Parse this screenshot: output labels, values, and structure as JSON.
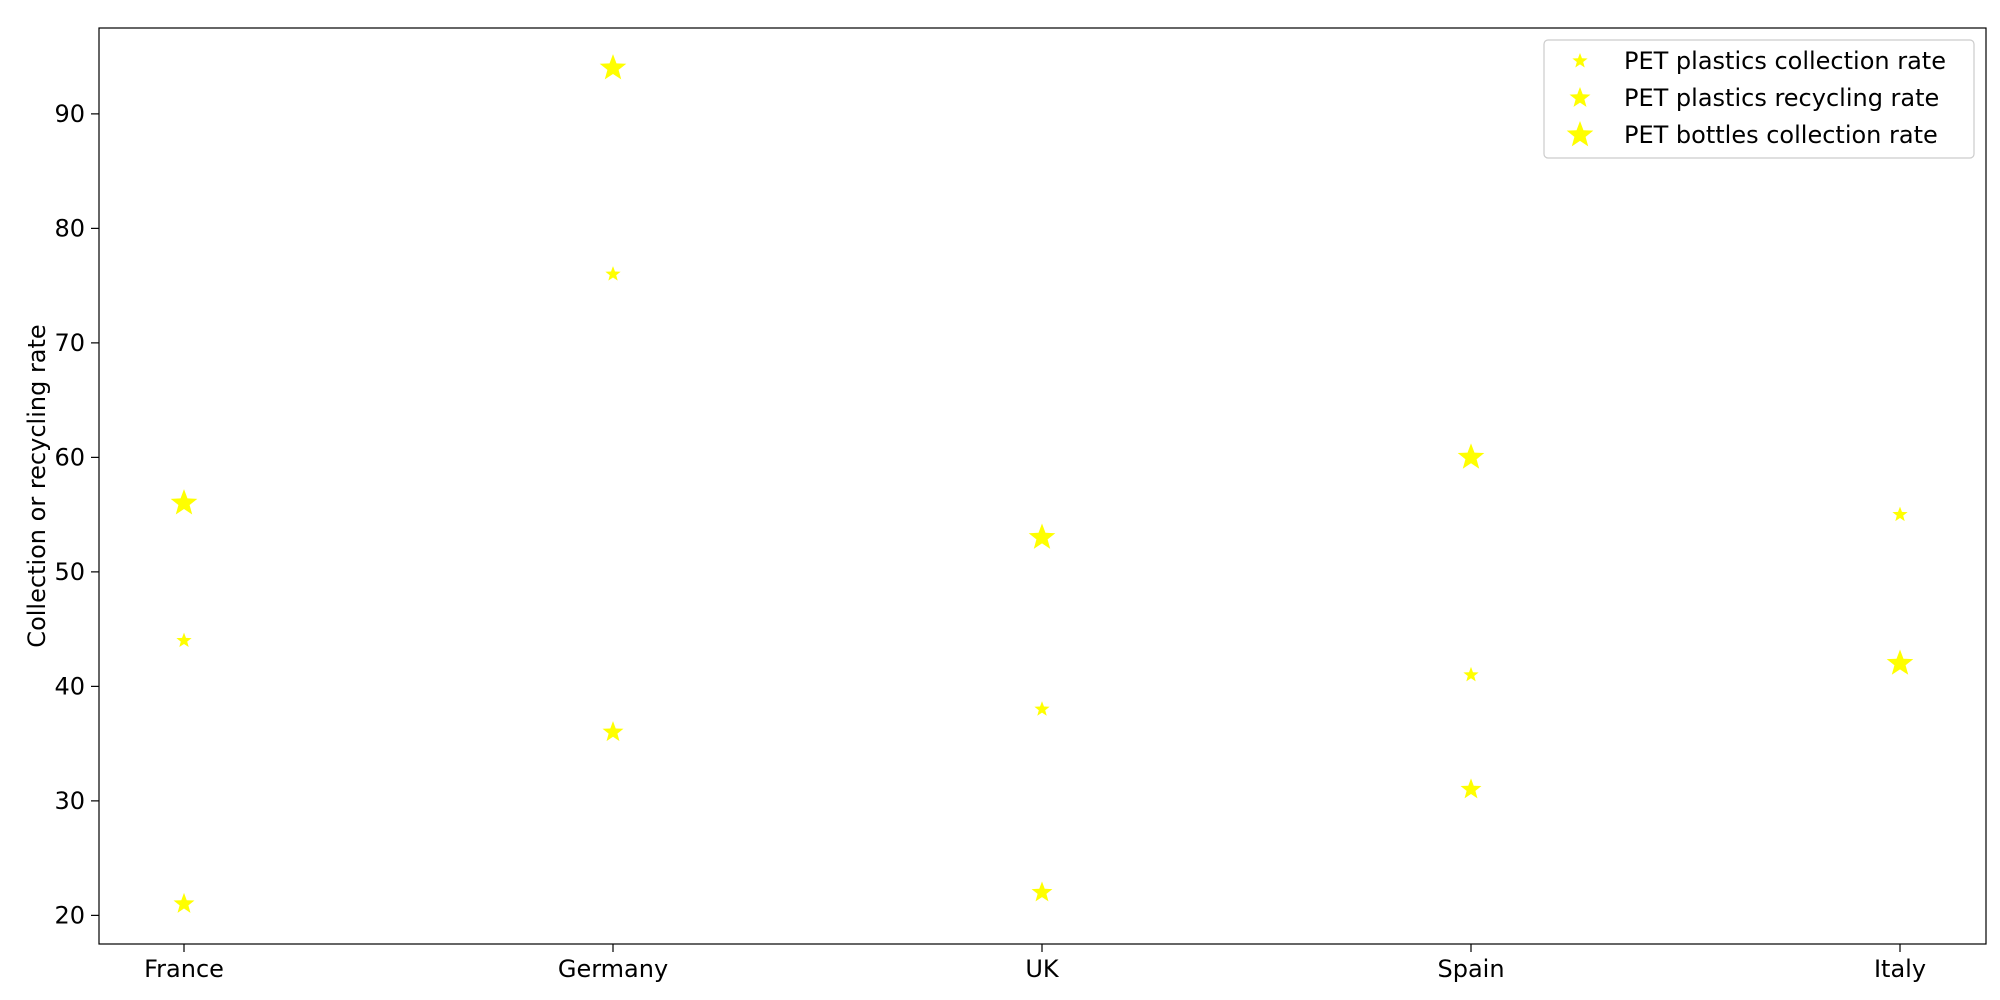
{
  "chart_data": {
    "type": "scatter",
    "title": "",
    "xlabel": "",
    "ylabel": "Collection or recycling rate",
    "categories": [
      "France",
      "Germany",
      "UK",
      "Spain",
      "Italy"
    ],
    "ylim": [
      17.5,
      97.5
    ],
    "yticks": [
      20,
      30,
      40,
      50,
      60,
      70,
      80,
      90
    ],
    "grid": false,
    "legend_position": "top-right",
    "marker": "star",
    "series": [
      {
        "name": "PET plastics collection rate",
        "color": "#ffff00",
        "marker_size": "small",
        "values": [
          44,
          76,
          38,
          41,
          55
        ]
      },
      {
        "name": "PET plastics recycling rate",
        "color": "#ffff00",
        "marker_size": "medium",
        "values": [
          21,
          36,
          22,
          31,
          null
        ]
      },
      {
        "name": "PET bottles collection rate",
        "color": "#ffff00",
        "marker_size": "large",
        "values": [
          56,
          94,
          53,
          60,
          42
        ]
      }
    ]
  }
}
